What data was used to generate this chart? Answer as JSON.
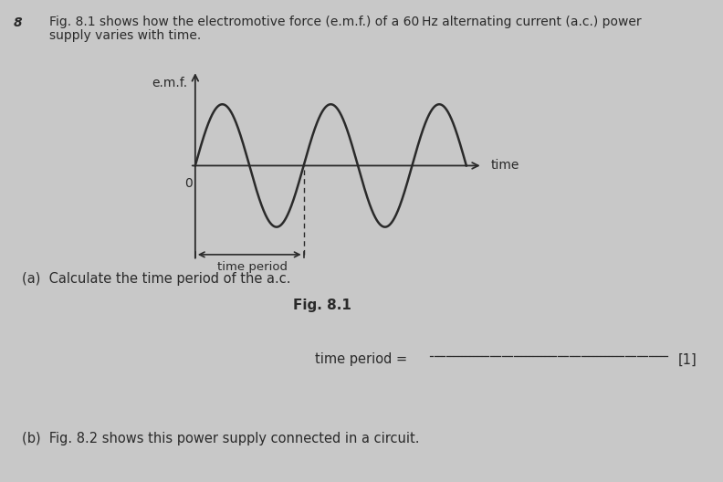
{
  "background_color": "#c8c8c8",
  "question_number": "8",
  "question_text_line1": "Fig. 8.1 shows how the electromotive force (e.m.f.) of a 60 Hz alternating current (a.c.) power",
  "question_text_line2": "supply varies with time.",
  "fig_label": "Fig. 8.1",
  "ylabel": "e.m.f.",
  "xlabel": "time",
  "origin_label": "0",
  "time_period_label": "time period",
  "part_a_text": "(a)  Calculate the time period of the a.c.",
  "part_b_text": "(b)  Fig. 8.2 shows this power supply connected in a circuit.",
  "answer_line_text": "time period = ",
  "marks_text": "[1]",
  "sine_color": "#2a2a2a",
  "axis_color": "#2a2a2a",
  "text_color": "#2a2a2a",
  "num_cycles": 2.5,
  "sine_amplitude": 1.0
}
